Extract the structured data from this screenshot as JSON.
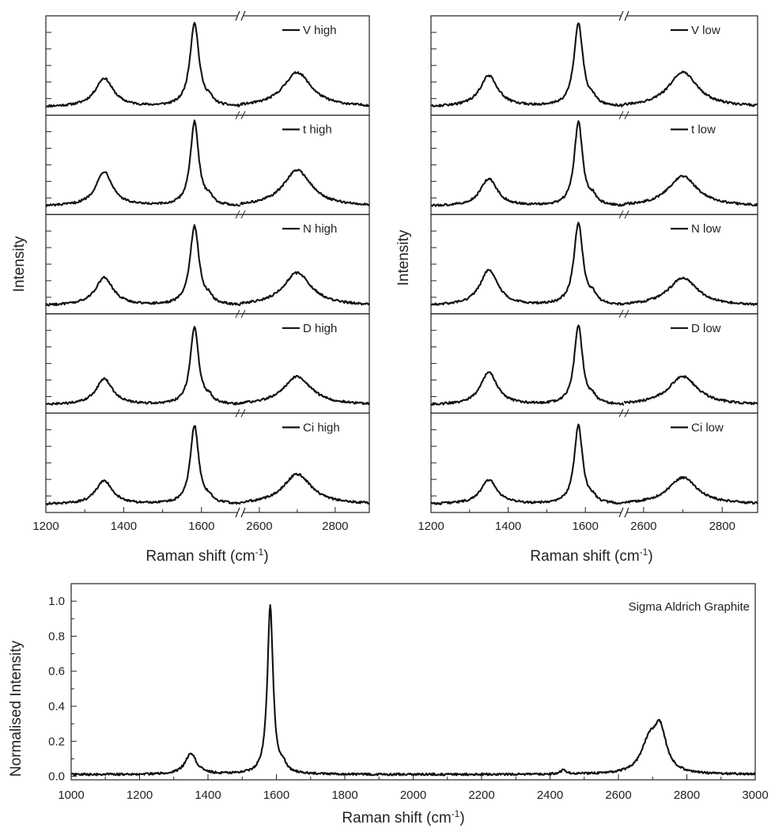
{
  "chart_data": [
    {
      "type": "line",
      "panel": "left-stack",
      "xlabel": "Raman shift (cm",
      "xlabel_sup": "-1",
      "xlabel_tail": ")",
      "ylabel": "Intensity",
      "x_break": {
        "from": 1700,
        "to": 2550
      },
      "x_segments": [
        [
          1200,
          1700
        ],
        [
          2550,
          2890
        ]
      ],
      "x_tick_labels": [
        "1200",
        "1400",
        "1600",
        "2600",
        "2800"
      ],
      "y_ticks": "unlabeled",
      "series": [
        {
          "name": "V high",
          "peaks": [
            {
              "x": 1350,
              "h": 0.33,
              "w": 28
            },
            {
              "x": 1582,
              "h": 0.97,
              "w": 14
            },
            {
              "x": 1620,
              "h": 0.06,
              "w": 10
            },
            {
              "x": 2700,
              "h": 0.4,
              "w": 45
            }
          ]
        },
        {
          "name": "t high",
          "peaks": [
            {
              "x": 1350,
              "h": 0.4,
              "w": 26
            },
            {
              "x": 1582,
              "h": 0.97,
              "w": 13
            },
            {
              "x": 1620,
              "h": 0.08,
              "w": 10
            },
            {
              "x": 2700,
              "h": 0.42,
              "w": 45
            }
          ]
        },
        {
          "name": "N high",
          "peaks": [
            {
              "x": 1350,
              "h": 0.32,
              "w": 28
            },
            {
              "x": 1582,
              "h": 0.92,
              "w": 14
            },
            {
              "x": 1620,
              "h": 0.06,
              "w": 10
            },
            {
              "x": 2700,
              "h": 0.38,
              "w": 45
            }
          ]
        },
        {
          "name": "D high",
          "peaks": [
            {
              "x": 1350,
              "h": 0.3,
              "w": 26
            },
            {
              "x": 1582,
              "h": 0.9,
              "w": 13
            },
            {
              "x": 1620,
              "h": 0.06,
              "w": 10
            },
            {
              "x": 2700,
              "h": 0.33,
              "w": 45
            }
          ]
        },
        {
          "name": "Ci high",
          "peaks": [
            {
              "x": 1350,
              "h": 0.27,
              "w": 26
            },
            {
              "x": 1582,
              "h": 0.91,
              "w": 13
            },
            {
              "x": 1620,
              "h": 0.05,
              "w": 10
            },
            {
              "x": 2700,
              "h": 0.35,
              "w": 45
            }
          ]
        }
      ]
    },
    {
      "type": "line",
      "panel": "right-stack",
      "xlabel": "Raman shift (cm",
      "xlabel_sup": "-1",
      "xlabel_tail": ")",
      "ylabel": "Intensity",
      "x_break": {
        "from": 1700,
        "to": 2550
      },
      "x_segments": [
        [
          1200,
          1700
        ],
        [
          2550,
          2890
        ]
      ],
      "x_tick_labels": [
        "1200",
        "1400",
        "1600",
        "2600",
        "2800"
      ],
      "y_ticks": "unlabeled",
      "series": [
        {
          "name": "V low",
          "peaks": [
            {
              "x": 1350,
              "h": 0.36,
              "w": 28
            },
            {
              "x": 1582,
              "h": 0.97,
              "w": 14
            },
            {
              "x": 1620,
              "h": 0.06,
              "w": 10
            },
            {
              "x": 2700,
              "h": 0.4,
              "w": 45
            }
          ]
        },
        {
          "name": "t low",
          "peaks": [
            {
              "x": 1350,
              "h": 0.32,
              "w": 26
            },
            {
              "x": 1582,
              "h": 0.97,
              "w": 13
            },
            {
              "x": 1620,
              "h": 0.08,
              "w": 10
            },
            {
              "x": 2700,
              "h": 0.35,
              "w": 45
            }
          ]
        },
        {
          "name": "N low",
          "peaks": [
            {
              "x": 1350,
              "h": 0.41,
              "w": 28
            },
            {
              "x": 1582,
              "h": 0.95,
              "w": 14
            },
            {
              "x": 1620,
              "h": 0.08,
              "w": 10
            },
            {
              "x": 2700,
              "h": 0.32,
              "w": 45
            }
          ]
        },
        {
          "name": "D low",
          "peaks": [
            {
              "x": 1350,
              "h": 0.38,
              "w": 26
            },
            {
              "x": 1582,
              "h": 0.92,
              "w": 13
            },
            {
              "x": 1620,
              "h": 0.06,
              "w": 10
            },
            {
              "x": 2700,
              "h": 0.33,
              "w": 45
            }
          ]
        },
        {
          "name": "Ci low",
          "peaks": [
            {
              "x": 1350,
              "h": 0.28,
              "w": 26
            },
            {
              "x": 1582,
              "h": 0.91,
              "w": 13
            },
            {
              "x": 1620,
              "h": 0.05,
              "w": 10
            },
            {
              "x": 2700,
              "h": 0.31,
              "w": 45
            }
          ]
        }
      ]
    },
    {
      "type": "line",
      "panel": "bottom",
      "title": "Sigma Aldrich Graphite",
      "xlabel": "Raman shift (cm",
      "xlabel_sup": "-1",
      "xlabel_tail": ")",
      "ylabel": "Normalised Intensity",
      "xlim": [
        1000,
        3000
      ],
      "ylim": [
        -0.02,
        1.1
      ],
      "x_tick_labels": [
        "1000",
        "1200",
        "1400",
        "1600",
        "1800",
        "2000",
        "2200",
        "2400",
        "2600",
        "2800",
        "3000"
      ],
      "y_tick_labels": [
        "0.0",
        "0.2",
        "0.4",
        "0.6",
        "0.8",
        "1.0"
      ],
      "baseline": 0.01,
      "peaks": [
        {
          "x": 1350,
          "h": 0.12,
          "w": 20
        },
        {
          "x": 1582,
          "h": 0.96,
          "w": 10
        },
        {
          "x": 1620,
          "h": 0.04,
          "w": 10
        },
        {
          "x": 2440,
          "h": 0.025,
          "w": 10
        },
        {
          "x": 2690,
          "h": 0.17,
          "w": 28
        },
        {
          "x": 2722,
          "h": 0.23,
          "w": 22
        }
      ]
    }
  ]
}
